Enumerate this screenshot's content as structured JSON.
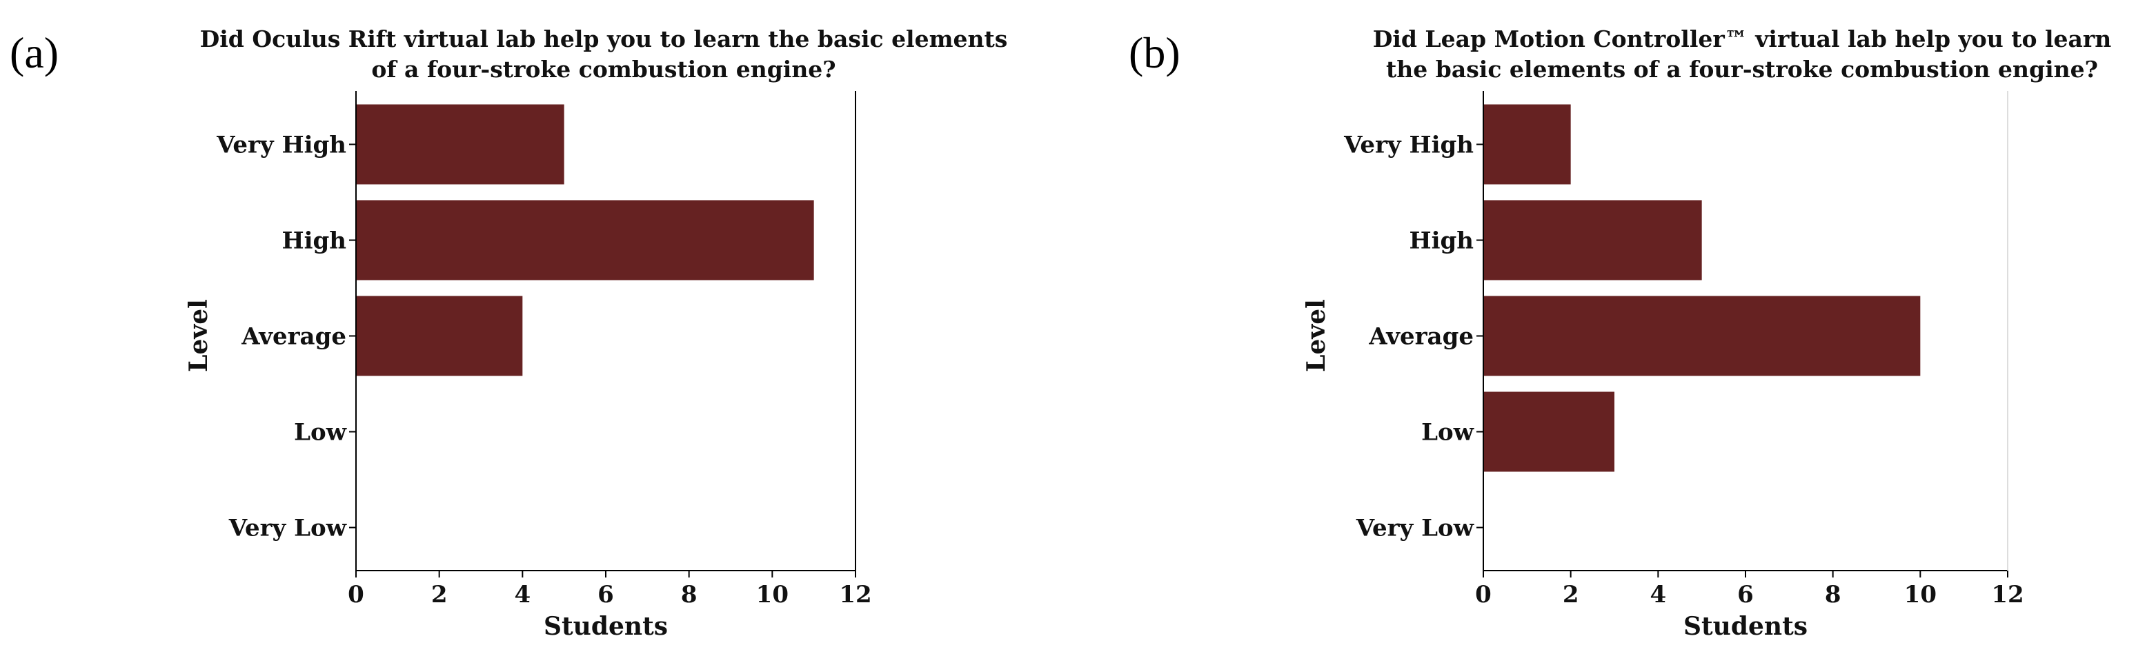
{
  "chart_data": [
    {
      "type": "bar",
      "orientation": "horizontal",
      "panel_label": "(a)",
      "title_lines": [
        "Did Oculus Rift virtual lab help you to learn the basic elements",
        "of a four-stroke combustion engine?"
      ],
      "xlabel": "Students",
      "ylabel": "Level",
      "categories": [
        "Very High",
        "High",
        "Average",
        "Low",
        "Very Low"
      ],
      "values": [
        5,
        11,
        4,
        0,
        0
      ],
      "xlim": [
        0,
        12
      ],
      "xticks": [
        0,
        2,
        4,
        6,
        8,
        10,
        12
      ],
      "bar_color": "#662222",
      "grid": false,
      "legend": "none"
    },
    {
      "type": "bar",
      "orientation": "horizontal",
      "panel_label": "(b)",
      "title_lines": [
        "Did Leap Motion Controller™ virtual lab help you to learn",
        "the basic elements of a four-stroke combustion engine?"
      ],
      "xlabel": "Students",
      "ylabel": "Level",
      "categories": [
        "Very High",
        "High",
        "Average",
        "Low",
        "Very Low"
      ],
      "values": [
        2,
        5,
        10,
        3,
        0
      ],
      "xlim": [
        0,
        12
      ],
      "xticks": [
        0,
        2,
        4,
        6,
        8,
        10,
        12
      ],
      "bar_color": "#662222",
      "grid": false,
      "legend": "none"
    }
  ],
  "colors": {
    "bar": "#662222",
    "axis": "#000000",
    "right_frame_b": "#dddddd",
    "text": "#111111"
  }
}
